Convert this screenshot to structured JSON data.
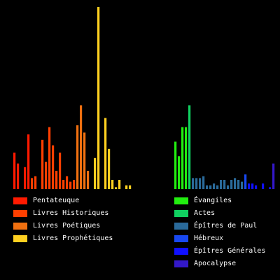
{
  "chart_data": {
    "type": "bar",
    "title": "",
    "xlabel": "",
    "ylabel": "",
    "grid": false,
    "legend_position": "bottom",
    "ylim": [
      0,
      1.0
    ],
    "series": [
      {
        "name": "Pentateuque",
        "color": "#ff1a00",
        "values": [
          0.2,
          0.14,
          0.0,
          0.12,
          0.3
        ]
      },
      {
        "name": "Livres Historiques",
        "color": "#ff3f00",
        "values": [
          0.06,
          0.07,
          0.0,
          0.27,
          0.15,
          0.34,
          0.24,
          0.1,
          0.2,
          0.05,
          0.07,
          0.04,
          0.05
        ]
      },
      {
        "name": "Livres Poétiques",
        "color": "#f07010",
        "values": [
          0.35,
          0.46,
          0.31,
          0.1
        ]
      },
      {
        "name": "Livres Prophétiques",
        "color": "#ffd020",
        "values": [
          0.0,
          0.17,
          1.0,
          0.0,
          0.39,
          0.22,
          0.05,
          0.01,
          0.05,
          0.0,
          0.02,
          0.02
        ]
      },
      {
        "name": "Évangiles",
        "color": "#22ee10",
        "values": [
          0.26,
          0.18,
          0.34,
          0.34
        ]
      },
      {
        "name": "Actes",
        "color": "#10d060",
        "values": [
          0.46
        ]
      },
      {
        "name": "Épîtres de Paul",
        "color": "#2a6a9a",
        "values": [
          0.06,
          0.06,
          0.06,
          0.07,
          0.02,
          0.02,
          0.03,
          0.02,
          0.05,
          0.05,
          0.02,
          0.05,
          0.06,
          0.05,
          0.04
        ]
      },
      {
        "name": "Hébreux",
        "color": "#1848f0",
        "values": [
          0.08
        ]
      },
      {
        "name": "Épîtres Générales",
        "color": "#1010ff",
        "values": [
          0.03,
          0.03,
          0.02,
          0.0,
          0.03,
          0.0,
          0.01
        ]
      },
      {
        "name": "Apocalypse",
        "color": "#3318c8",
        "values": [
          0.14
        ]
      }
    ]
  }
}
